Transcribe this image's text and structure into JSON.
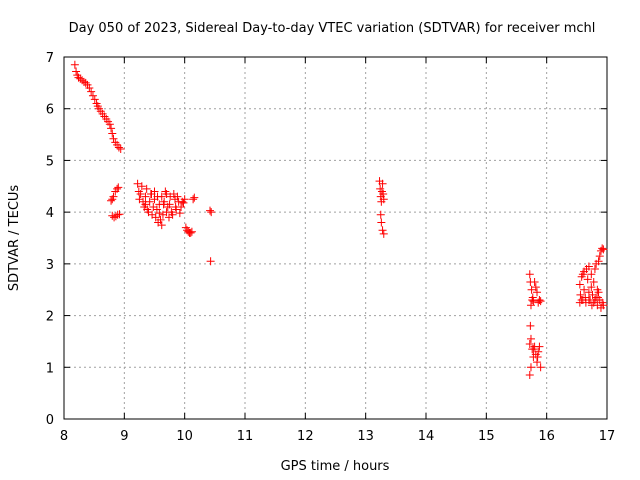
{
  "chart_data": {
    "type": "scatter",
    "title": "Day 050 of 2023, Sidereal Day-to-day VTEC variation (SDTVAR) for receiver mchl",
    "xlabel": "GPS time / hours",
    "ylabel": "SDTVAR / TECUs",
    "xlim": [
      8,
      17
    ],
    "ylim": [
      0,
      7
    ],
    "xticks": [
      "8",
      "9",
      "10",
      "11",
      "12",
      "13",
      "14",
      "15",
      "16",
      "17"
    ],
    "yticks": [
      "0",
      "1",
      "2",
      "3",
      "4",
      "5",
      "6",
      "7"
    ],
    "grid": true,
    "marker": "+",
    "series": [
      {
        "name": "SDTVAR",
        "color": "#ff0000",
        "points": [
          [
            8.18,
            6.85
          ],
          [
            8.2,
            6.72
          ],
          [
            8.22,
            6.65
          ],
          [
            8.24,
            6.6
          ],
          [
            8.27,
            6.58
          ],
          [
            8.3,
            6.55
          ],
          [
            8.33,
            6.52
          ],
          [
            8.36,
            6.5
          ],
          [
            8.39,
            6.46
          ],
          [
            8.42,
            6.4
          ],
          [
            8.45,
            6.33
          ],
          [
            8.48,
            6.25
          ],
          [
            8.51,
            6.18
          ],
          [
            8.54,
            6.1
          ],
          [
            8.56,
            6.05
          ],
          [
            8.58,
            6.0
          ],
          [
            8.61,
            5.95
          ],
          [
            8.64,
            5.9
          ],
          [
            8.67,
            5.85
          ],
          [
            8.7,
            5.8
          ],
          [
            8.73,
            5.75
          ],
          [
            8.76,
            5.7
          ],
          [
            8.78,
            5.62
          ],
          [
            8.8,
            5.52
          ],
          [
            8.82,
            5.42
          ],
          [
            8.85,
            5.35
          ],
          [
            8.88,
            5.3
          ],
          [
            8.91,
            5.25
          ],
          [
            8.94,
            5.22
          ],
          [
            8.78,
            4.22
          ],
          [
            8.8,
            4.25
          ],
          [
            8.82,
            4.3
          ],
          [
            8.85,
            4.4
          ],
          [
            8.88,
            4.45
          ],
          [
            8.9,
            4.48
          ],
          [
            8.8,
            3.93
          ],
          [
            8.83,
            3.9
          ],
          [
            8.86,
            3.92
          ],
          [
            8.89,
            3.95
          ],
          [
            8.92,
            3.96
          ],
          [
            9.22,
            4.55
          ],
          [
            9.24,
            4.4
          ],
          [
            9.25,
            4.25
          ],
          [
            9.27,
            4.35
          ],
          [
            9.29,
            4.5
          ],
          [
            9.31,
            4.2
          ],
          [
            9.33,
            4.1
          ],
          [
            9.35,
            4.3
          ],
          [
            9.37,
            4.45
          ],
          [
            9.38,
            4.05
          ],
          [
            9.4,
            4.0
          ],
          [
            9.42,
            4.2
          ],
          [
            9.44,
            4.35
          ],
          [
            9.46,
            3.95
          ],
          [
            9.48,
            4.1
          ],
          [
            9.5,
            4.25
          ],
          [
            9.52,
            3.9
          ],
          [
            9.54,
            4.05
          ],
          [
            9.56,
            3.8
          ],
          [
            9.58,
            4.15
          ],
          [
            9.6,
            3.85
          ],
          [
            9.62,
            4.3
          ],
          [
            9.64,
            3.95
          ],
          [
            9.66,
            4.2
          ],
          [
            9.68,
            4.4
          ],
          [
            9.7,
            4.35
          ],
          [
            9.72,
            4.1
          ],
          [
            9.74,
            3.9
          ],
          [
            9.76,
            4.3
          ],
          [
            9.78,
            4.0
          ],
          [
            9.8,
            3.95
          ],
          [
            9.82,
            4.35
          ],
          [
            9.84,
            4.25
          ],
          [
            9.86,
            4.05
          ],
          [
            9.88,
            4.3
          ],
          [
            9.9,
            4.2
          ],
          [
            9.92,
            3.98
          ],
          [
            9.94,
            4.1
          ],
          [
            9.96,
            4.2
          ],
          [
            9.98,
            4.18
          ],
          [
            10.0,
            4.25
          ],
          [
            10.02,
            3.7
          ],
          [
            10.04,
            3.65
          ],
          [
            10.06,
            3.62
          ],
          [
            10.08,
            3.6
          ],
          [
            10.1,
            3.6
          ],
          [
            10.12,
            3.62
          ],
          [
            10.14,
            4.25
          ],
          [
            10.16,
            4.28
          ],
          [
            9.45,
            4.35
          ],
          [
            9.55,
            4.3
          ],
          [
            9.65,
            4.15
          ],
          [
            9.75,
            4.15
          ],
          [
            9.85,
            4.1
          ],
          [
            9.5,
            4.4
          ],
          [
            9.7,
            4.0
          ],
          [
            9.58,
            3.98
          ],
          [
            9.62,
            3.75
          ],
          [
            9.35,
            4.15
          ],
          [
            10.42,
            4.03
          ],
          [
            10.44,
            4.0
          ],
          [
            10.43,
            3.05
          ],
          [
            13.23,
            4.6
          ],
          [
            13.24,
            4.45
          ],
          [
            13.25,
            4.3
          ],
          [
            13.26,
            4.2
          ],
          [
            13.27,
            4.4
          ],
          [
            13.28,
            4.55
          ],
          [
            13.29,
            4.35
          ],
          [
            13.3,
            4.25
          ],
          [
            13.25,
            3.95
          ],
          [
            13.26,
            3.8
          ],
          [
            13.28,
            3.65
          ],
          [
            13.3,
            3.58
          ],
          [
            15.72,
            2.8
          ],
          [
            15.73,
            2.65
          ],
          [
            15.75,
            2.5
          ],
          [
            15.77,
            2.35
          ],
          [
            15.74,
            2.2
          ],
          [
            15.76,
            2.3
          ],
          [
            15.78,
            2.28
          ],
          [
            15.8,
            2.65
          ],
          [
            15.82,
            2.55
          ],
          [
            15.84,
            2.45
          ],
          [
            15.86,
            2.25
          ],
          [
            15.88,
            2.3
          ],
          [
            15.9,
            2.28
          ],
          [
            15.73,
            1.8
          ],
          [
            15.72,
            1.45
          ],
          [
            15.74,
            1.55
          ],
          [
            15.76,
            1.35
          ],
          [
            15.78,
            1.2
          ],
          [
            15.8,
            1.4
          ],
          [
            15.82,
            1.25
          ],
          [
            15.84,
            1.1
          ],
          [
            15.86,
            1.3
          ],
          [
            15.88,
            1.4
          ],
          [
            15.9,
            1.0
          ],
          [
            15.72,
            0.85
          ],
          [
            15.74,
            1.0
          ],
          [
            15.78,
            1.35
          ],
          [
            15.85,
            1.2
          ],
          [
            16.55,
            2.6
          ],
          [
            16.56,
            2.4
          ],
          [
            16.58,
            2.3
          ],
          [
            16.6,
            2.8
          ],
          [
            16.62,
            2.5
          ],
          [
            16.64,
            2.35
          ],
          [
            16.66,
            2.9
          ],
          [
            16.68,
            2.7
          ],
          [
            16.7,
            2.45
          ],
          [
            16.72,
            2.3
          ],
          [
            16.74,
            2.55
          ],
          [
            16.76,
            2.4
          ],
          [
            16.78,
            2.25
          ],
          [
            16.8,
            2.9
          ],
          [
            16.82,
            2.35
          ],
          [
            16.84,
            2.2
          ],
          [
            16.86,
            2.45
          ],
          [
            16.88,
            2.3
          ],
          [
            16.9,
            2.15
          ],
          [
            16.92,
            2.25
          ],
          [
            16.6,
            2.3
          ],
          [
            16.65,
            2.25
          ],
          [
            16.7,
            2.3
          ],
          [
            16.75,
            2.2
          ],
          [
            16.8,
            2.3
          ],
          [
            16.85,
            2.35
          ],
          [
            16.88,
            3.15
          ],
          [
            16.9,
            3.25
          ],
          [
            16.92,
            3.3
          ],
          [
            16.94,
            3.28
          ],
          [
            16.82,
            3.0
          ],
          [
            16.86,
            3.05
          ],
          [
            16.58,
            2.75
          ],
          [
            16.62,
            2.85
          ],
          [
            16.74,
            2.8
          ],
          [
            16.78,
            2.65
          ],
          [
            16.84,
            2.5
          ],
          [
            16.94,
            2.2
          ],
          [
            16.7,
            2.95
          ],
          [
            16.55,
            2.25
          ]
        ]
      }
    ]
  }
}
